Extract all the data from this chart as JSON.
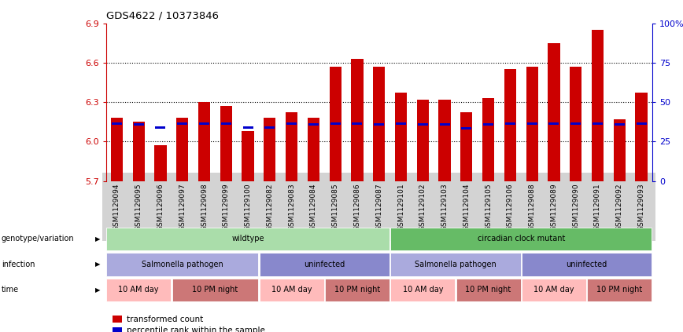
{
  "title": "GDS4622 / 10373846",
  "ylim": [
    5.7,
    6.9
  ],
  "yticks": [
    5.7,
    6.0,
    6.3,
    6.6,
    6.9
  ],
  "y2ticks": [
    0,
    25,
    50,
    75,
    100
  ],
  "y2ticklabels": [
    "0",
    "25",
    "50",
    "75",
    "100%"
  ],
  "samples": [
    "GSM1129094",
    "GSM1129095",
    "GSM1129096",
    "GSM1129097",
    "GSM1129098",
    "GSM1129099",
    "GSM1129100",
    "GSM1129082",
    "GSM1129083",
    "GSM1129084",
    "GSM1129085",
    "GSM1129086",
    "GSM1129087",
    "GSM1129101",
    "GSM1129102",
    "GSM1129103",
    "GSM1129104",
    "GSM1129105",
    "GSM1129106",
    "GSM1129088",
    "GSM1129089",
    "GSM1129090",
    "GSM1129091",
    "GSM1129092",
    "GSM1129093"
  ],
  "red_values": [
    6.18,
    6.15,
    5.97,
    6.18,
    6.3,
    6.27,
    6.08,
    6.18,
    6.22,
    6.18,
    6.57,
    6.63,
    6.57,
    6.37,
    6.32,
    6.32,
    6.22,
    6.33,
    6.55,
    6.57,
    6.75,
    6.57,
    6.85,
    6.17,
    6.37
  ],
  "blue_values": [
    6.13,
    6.12,
    6.1,
    6.13,
    6.13,
    6.13,
    6.1,
    6.1,
    6.13,
    6.12,
    6.13,
    6.13,
    6.12,
    6.13,
    6.12,
    6.12,
    6.09,
    6.12,
    6.13,
    6.13,
    6.13,
    6.13,
    6.13,
    6.12,
    6.13
  ],
  "base": 5.7,
  "bar_width": 0.55,
  "red_color": "#cc0000",
  "blue_color": "#0000cc",
  "tick_color_left": "#cc0000",
  "tick_color_right": "#0000cc",
  "grid_yticks": [
    6.0,
    6.3,
    6.6
  ],
  "annotation_rows": [
    {
      "label": "genotype/variation",
      "segments": [
        {
          "text": "wildtype",
          "start": 0,
          "end": 13,
          "color": "#aaddaa"
        },
        {
          "text": "circadian clock mutant",
          "start": 13,
          "end": 25,
          "color": "#66bb66"
        }
      ]
    },
    {
      "label": "infection",
      "segments": [
        {
          "text": "Salmonella pathogen",
          "start": 0,
          "end": 7,
          "color": "#aaaadd"
        },
        {
          "text": "uninfected",
          "start": 7,
          "end": 13,
          "color": "#8888cc"
        },
        {
          "text": "Salmonella pathogen",
          "start": 13,
          "end": 19,
          "color": "#aaaadd"
        },
        {
          "text": "uninfected",
          "start": 19,
          "end": 25,
          "color": "#8888cc"
        }
      ]
    },
    {
      "label": "time",
      "segments": [
        {
          "text": "10 AM day",
          "start": 0,
          "end": 3,
          "color": "#ffbbbb"
        },
        {
          "text": "10 PM night",
          "start": 3,
          "end": 7,
          "color": "#cc7777"
        },
        {
          "text": "10 AM day",
          "start": 7,
          "end": 10,
          "color": "#ffbbbb"
        },
        {
          "text": "10 PM night",
          "start": 10,
          "end": 13,
          "color": "#cc7777"
        },
        {
          "text": "10 AM day",
          "start": 13,
          "end": 16,
          "color": "#ffbbbb"
        },
        {
          "text": "10 PM night",
          "start": 16,
          "end": 19,
          "color": "#cc7777"
        },
        {
          "text": "10 AM day",
          "start": 19,
          "end": 22,
          "color": "#ffbbbb"
        },
        {
          "text": "10 PM night",
          "start": 22,
          "end": 25,
          "color": "#cc7777"
        }
      ]
    }
  ],
  "legend_items": [
    {
      "color": "#cc0000",
      "label": "transformed count"
    },
    {
      "color": "#0000cc",
      "label": "percentile rank within the sample"
    }
  ]
}
